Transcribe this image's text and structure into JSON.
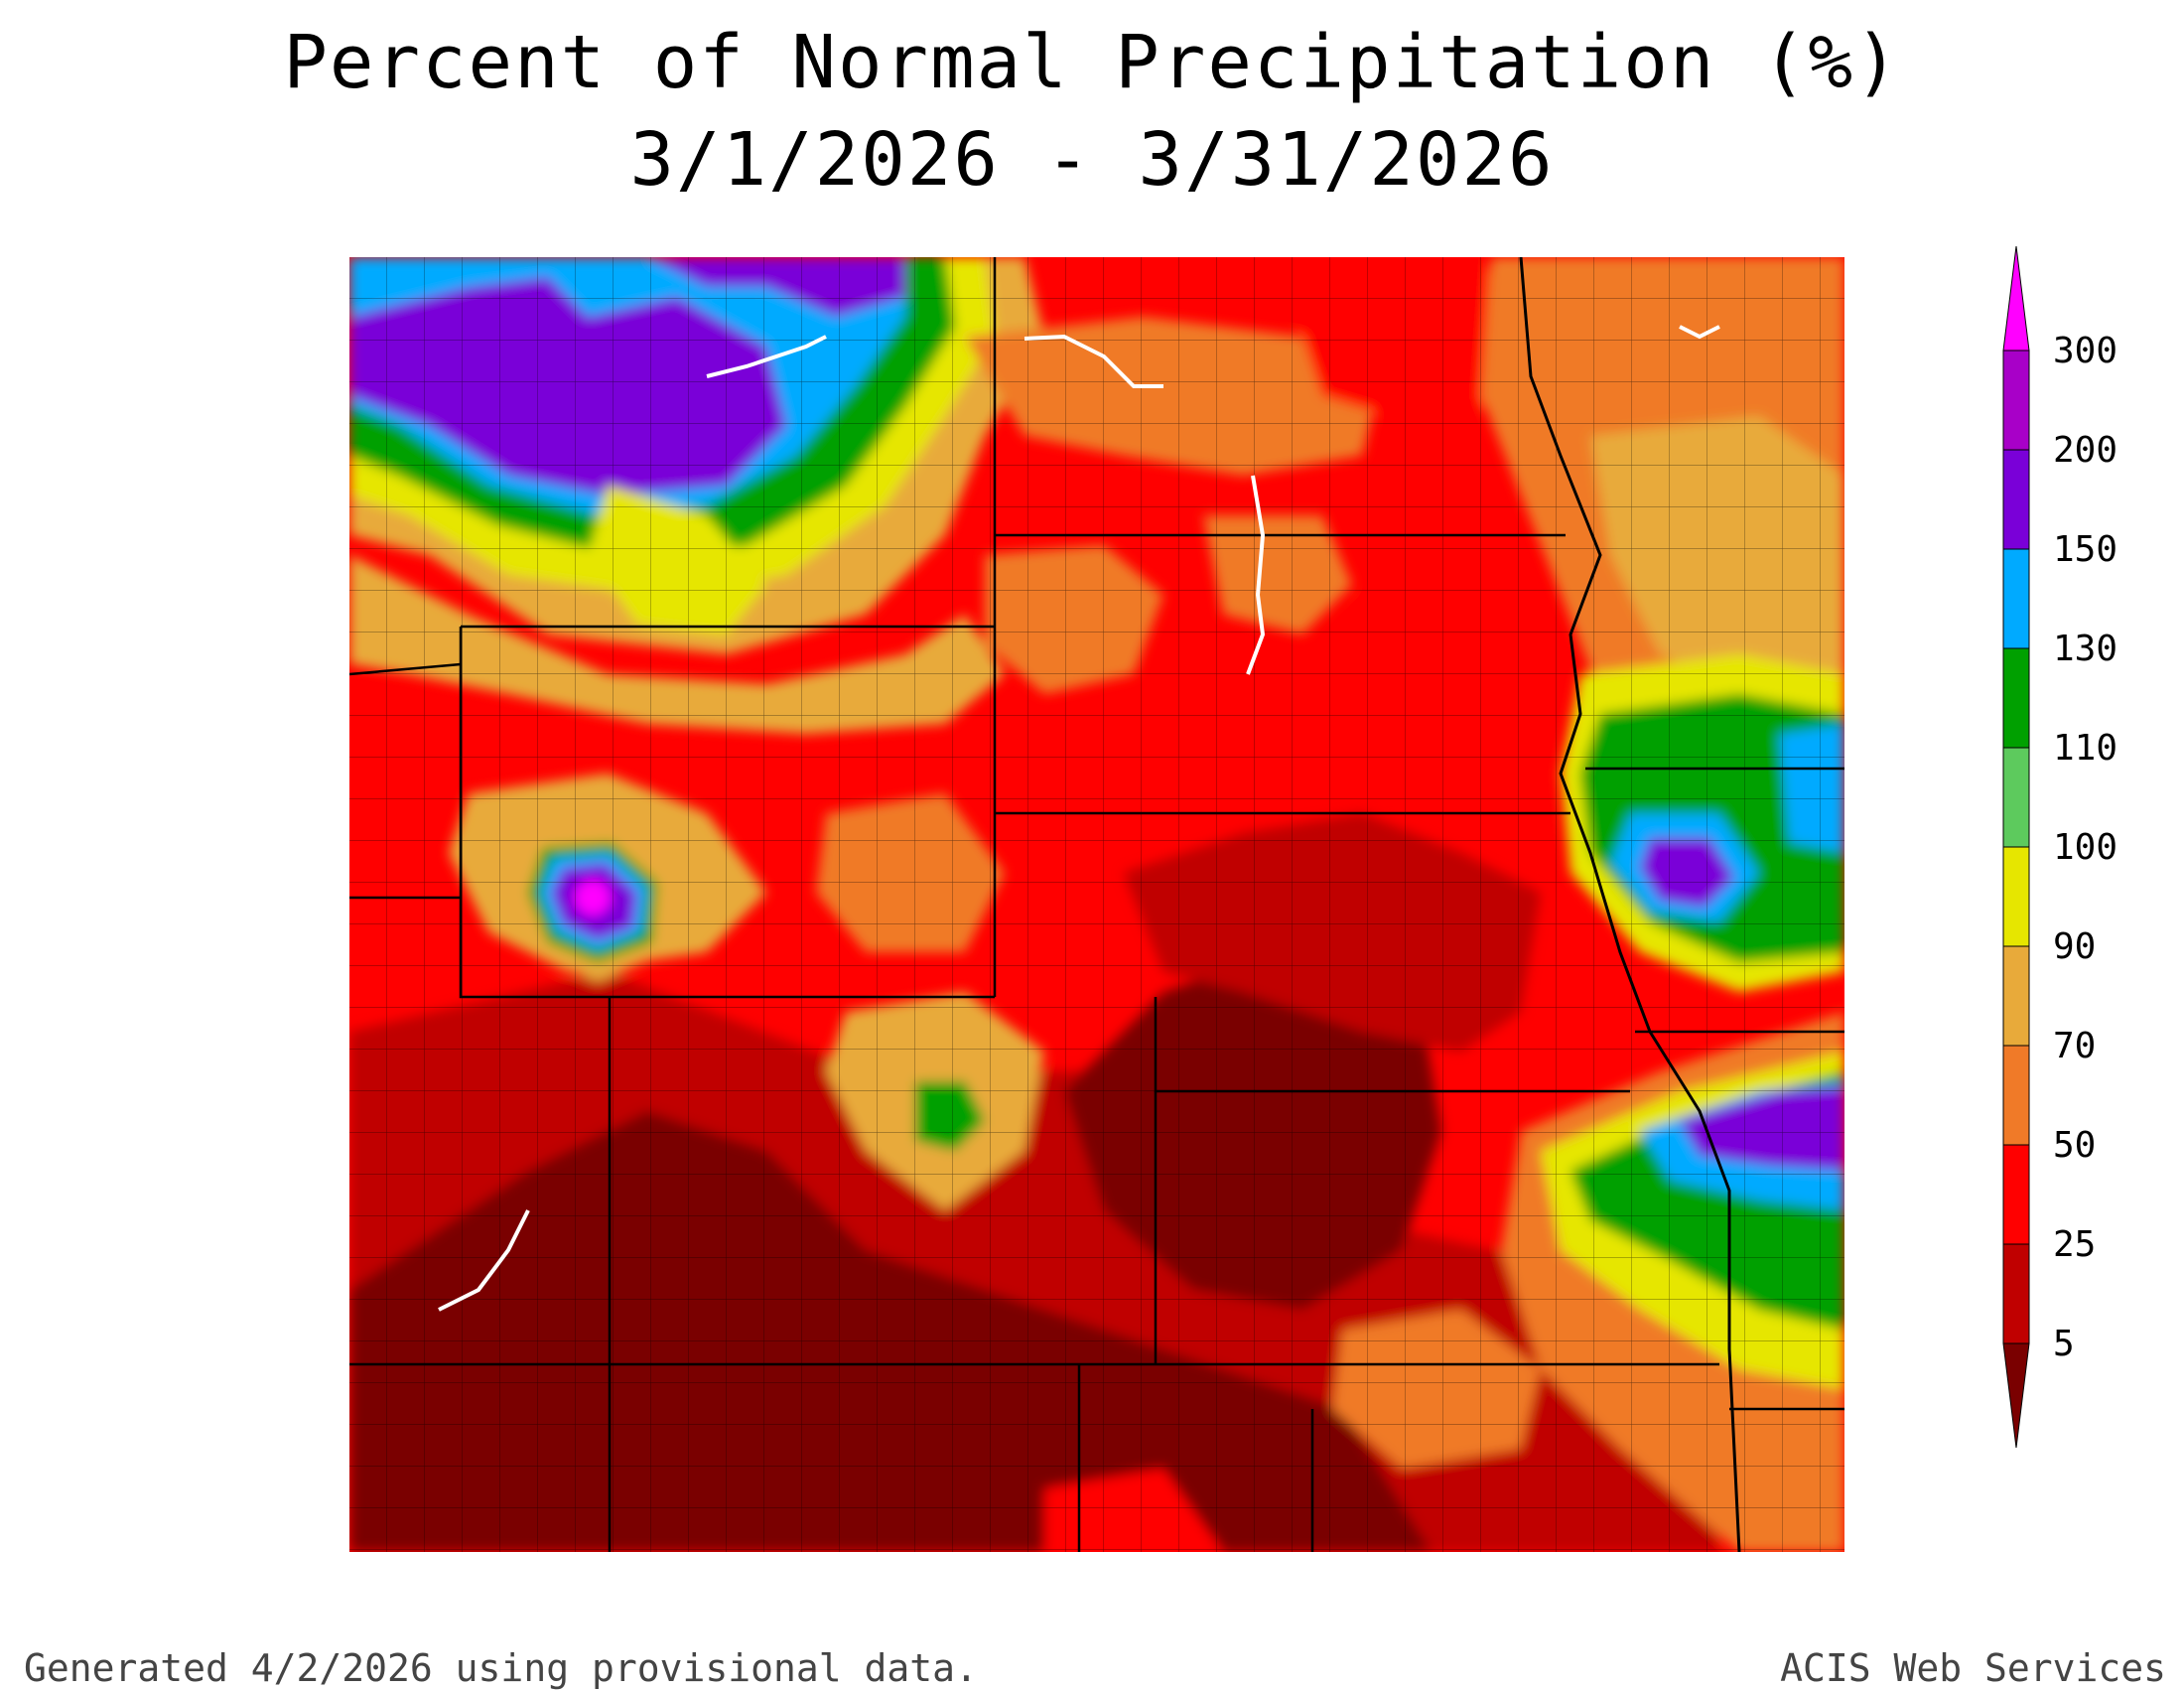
{
  "header": {
    "title": "Percent of Normal Precipitation (%)",
    "date_range": "3/1/2026 - 3/31/2026"
  },
  "legend": {
    "levels": [
      {
        "label": "5",
        "color": "#7a0000"
      },
      {
        "label": "25",
        "color": "#c00000"
      },
      {
        "label": "50",
        "color": "#ff0000"
      },
      {
        "label": "70",
        "color": "#f07a28"
      },
      {
        "label": "90",
        "color": "#e8aa3a"
      },
      {
        "label": "100",
        "color": "#e6e600"
      },
      {
        "label": "110",
        "color": "#5dca5d"
      },
      {
        "label": "130",
        "color": "#00a000"
      },
      {
        "label": "150",
        "color": "#00aaff"
      },
      {
        "label": "200",
        "color": "#7a00d8"
      },
      {
        "label": "300",
        "color": "#a800c8"
      }
    ],
    "top_arrow_color": "#ff00ff",
    "bottom_arrow_color": "#7a0000"
  },
  "footer": {
    "left": "Generated 4/2/2026 using provisional data.",
    "right": "ACIS Web Services"
  }
}
